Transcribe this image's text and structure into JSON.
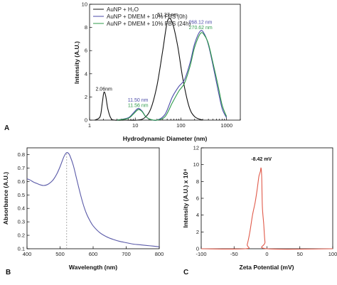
{
  "chart_data": [
    {
      "panel": "A",
      "type": "line",
      "xscale": "log",
      "xlim": [
        1,
        2000
      ],
      "ylim": [
        0,
        10
      ],
      "xlabel": "Hydrodynamic Diameter (nm)",
      "ylabel": "Intensity (A.U.)",
      "xticks": [
        "1",
        "10",
        "100",
        "1000"
      ],
      "yticks": [
        "0",
        "2",
        "4",
        "6",
        "8",
        "10"
      ],
      "legend_position": "top-left",
      "series": [
        {
          "name": "AuNP + H₂O",
          "color": "#111111",
          "x": [
            1.3,
            1.7,
            1.9,
            2.06,
            2.25,
            2.5,
            2.9,
            3.5,
            6,
            11,
            16,
            22,
            30,
            40,
            51.27,
            65,
            85,
            110,
            150,
            200,
            300
          ],
          "y": [
            0,
            0.3,
            1.5,
            2.4,
            2.1,
            1.0,
            0.2,
            0,
            0,
            0,
            0.2,
            1.0,
            3.0,
            6.0,
            8.6,
            8.4,
            6.4,
            3.6,
            1.2,
            0.3,
            0
          ]
        },
        {
          "name": "AuNP + DMEM + 10% FBS (0h)",
          "color": "#4a4aa8",
          "x": [
            4,
            7,
            9,
            11.5,
            14,
            17,
            22,
            30,
            45,
            65,
            90,
            120,
            160,
            200,
            268.12,
            330,
            400,
            500,
            650,
            800,
            1000
          ],
          "y": [
            0,
            0.2,
            0.6,
            1.0,
            0.8,
            0.3,
            0.05,
            0,
            0.5,
            2.0,
            2.9,
            3.5,
            5.0,
            6.6,
            7.7,
            7.4,
            6.5,
            4.8,
            2.6,
            1.0,
            0.2
          ]
        },
        {
          "name": "AuNP + DMEM + 10% FBS (24h)",
          "color": "#2e9a4a",
          "x": [
            4,
            7,
            9,
            11.56,
            14,
            17,
            22,
            30,
            45,
            65,
            90,
            120,
            160,
            200,
            270.62,
            330,
            400,
            500,
            650,
            800,
            1000
          ],
          "y": [
            0,
            0.15,
            0.5,
            0.9,
            0.75,
            0.3,
            0.05,
            0,
            0.3,
            1.5,
            2.5,
            3.2,
            4.7,
            6.3,
            7.5,
            7.3,
            6.6,
            5.0,
            3.0,
            1.3,
            0.3
          ]
        }
      ],
      "annotations": [
        {
          "text": "2.06nm",
          "x": 2.06,
          "y": 2.55,
          "color": "#111111"
        },
        {
          "text": "51.27 nm",
          "x": 51.27,
          "y": 8.95,
          "color": "#111111"
        },
        {
          "text": "11.50 nm",
          "x": 11.5,
          "y": 1.6,
          "color": "#4a4aa8"
        },
        {
          "text": "11.56 nm",
          "x": 11.56,
          "y": 1.15,
          "color": "#2e9a4a"
        },
        {
          "text": "268.12 nm",
          "x": 268.12,
          "y": 8.3,
          "color": "#4a4aa8"
        },
        {
          "text": "270.62 nm",
          "x": 270.62,
          "y": 7.85,
          "color": "#2e9a4a"
        }
      ]
    },
    {
      "panel": "B",
      "type": "line",
      "xlim": [
        400,
        800
      ],
      "ylim": [
        0.1,
        0.85
      ],
      "xlabel": "Wavelength (nm)",
      "ylabel": "Absorbance (A.U.)",
      "xticks": [
        "400",
        "500",
        "600",
        "700",
        "800"
      ],
      "yticks": [
        "0.1",
        "0.2",
        "0.3",
        "0.4",
        "0.5",
        "0.6",
        "0.7",
        "0.8"
      ],
      "vline_x": 520,
      "series": [
        {
          "color": "#5a5aa8",
          "x": [
            400,
            410,
            420,
            430,
            440,
            450,
            460,
            470,
            480,
            490,
            500,
            510,
            515,
            520,
            525,
            530,
            540,
            550,
            560,
            570,
            580,
            590,
            600,
            620,
            640,
            660,
            680,
            700,
            720,
            740,
            760,
            780,
            800
          ],
          "y": [
            0.62,
            0.61,
            0.595,
            0.585,
            0.575,
            0.57,
            0.575,
            0.59,
            0.615,
            0.655,
            0.71,
            0.775,
            0.8,
            0.815,
            0.81,
            0.79,
            0.72,
            0.62,
            0.52,
            0.43,
            0.36,
            0.31,
            0.27,
            0.22,
            0.19,
            0.17,
            0.155,
            0.145,
            0.135,
            0.13,
            0.125,
            0.12,
            0.115
          ]
        }
      ]
    },
    {
      "panel": "C",
      "type": "line",
      "xlim": [
        -100,
        100
      ],
      "ylim": [
        0,
        12
      ],
      "xlabel": "Zeta Potential (mV)",
      "ylabel": "Intensity (A.U.) x 10⁴",
      "xticks": [
        "-100",
        "-50",
        "0",
        "50",
        "100"
      ],
      "yticks": [
        "0",
        "2",
        "4",
        "6",
        "8",
        "10",
        "12"
      ],
      "series": [
        {
          "color": "#e05a4a",
          "x": [
            -100,
            -33,
            -30,
            -26,
            -22,
            -18,
            -15,
            -13,
            -12,
            -10,
            -9,
            -8,
            -7,
            -5,
            -3,
            0,
            100
          ],
          "y": [
            0,
            0,
            0.5,
            2.0,
            4.0,
            5.5,
            7.0,
            8.2,
            8.7,
            9.2,
            9.6,
            8.5,
            5.0,
            3.0,
            0.8,
            0,
            0
          ]
        }
      ],
      "annotations": [
        {
          "text": "-8.42 mV",
          "x": -8.42,
          "y": 10.5,
          "color": "#111111"
        }
      ]
    }
  ],
  "panel_labels": {
    "a": "A",
    "b": "B",
    "c": "C"
  }
}
